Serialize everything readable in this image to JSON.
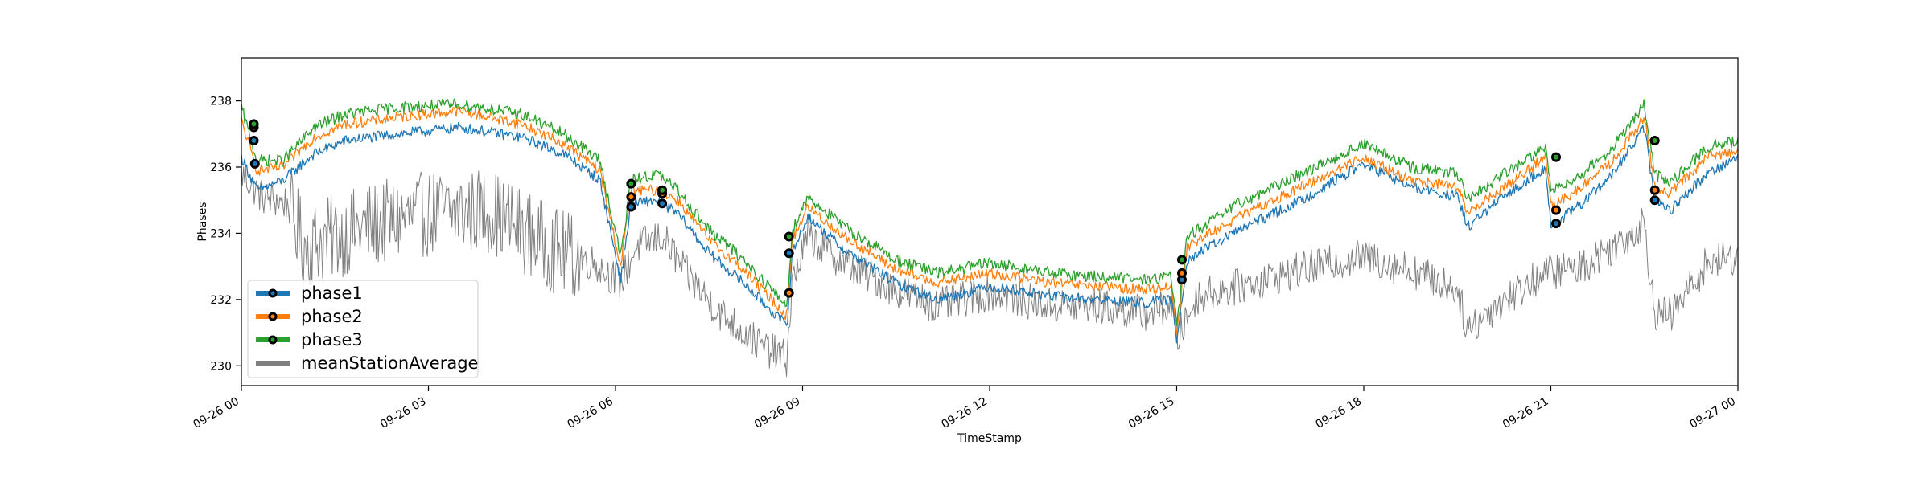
{
  "chart_data": {
    "type": "line",
    "xlabel": "TimeStamp",
    "ylabel": "Phases",
    "xlim": [
      "2019-09-26 00:00",
      "2019-09-27 00:00"
    ],
    "ylim": [
      229.4,
      239.3
    ],
    "x_ticks": [
      "09-26 00",
      "09-26 03",
      "09-26 06",
      "09-26 09",
      "09-26 12",
      "09-26 15",
      "09-26 18",
      "09-26 21",
      "09-27 00"
    ],
    "x_tick_hours": [
      0,
      3,
      6,
      9,
      12,
      15,
      18,
      21,
      24
    ],
    "y_ticks": [
      230,
      232,
      234,
      236,
      238
    ],
    "grid": false,
    "legend_position": "lower-left",
    "series": [
      {
        "name": "phase1",
        "color": "#1f77b4",
        "marker_color": "#1f77b4",
        "keypoints": [
          [
            "2019-09-26 00:00",
            236.3
          ],
          [
            "2019-09-26 00:15",
            235.3
          ],
          [
            "2019-09-26 00:40",
            235.6
          ],
          [
            "2019-09-26 01:10",
            236.4
          ],
          [
            "2019-09-26 01:40",
            236.8
          ],
          [
            "2019-09-26 02:30",
            237.0
          ],
          [
            "2019-09-26 03:30",
            237.2
          ],
          [
            "2019-09-26 04:30",
            236.9
          ],
          [
            "2019-09-26 05:10",
            236.4
          ],
          [
            "2019-09-26 05:45",
            235.6
          ],
          [
            "2019-09-26 06:05",
            232.6
          ],
          [
            "2019-09-26 06:15",
            234.9
          ],
          [
            "2019-09-26 06:40",
            235.0
          ],
          [
            "2019-09-26 07:00",
            234.6
          ],
          [
            "2019-09-26 07:30",
            233.4
          ],
          [
            "2019-09-26 08:00",
            232.6
          ],
          [
            "2019-09-26 08:45",
            231.2
          ],
          [
            "2019-09-26 08:50",
            233.4
          ],
          [
            "2019-09-26 09:05",
            234.5
          ],
          [
            "2019-09-26 09:40",
            233.5
          ],
          [
            "2019-09-26 10:30",
            232.5
          ],
          [
            "2019-09-26 11:10",
            232.0
          ],
          [
            "2019-09-26 12:00",
            232.4
          ],
          [
            "2019-09-26 13:00",
            232.1
          ],
          [
            "2019-09-26 13:40",
            232.0
          ],
          [
            "2019-09-26 14:30",
            231.9
          ],
          [
            "2019-09-26 14:55",
            232.0
          ],
          [
            "2019-09-26 15:00",
            230.8
          ],
          [
            "2019-09-26 15:10",
            233.2
          ],
          [
            "2019-09-26 16:00",
            234.1
          ],
          [
            "2019-09-26 17:00",
            235.0
          ],
          [
            "2019-09-26 18:00",
            236.1
          ],
          [
            "2019-09-26 18:45",
            235.4
          ],
          [
            "2019-09-26 19:30",
            235.1
          ],
          [
            "2019-09-26 19:40",
            234.2
          ],
          [
            "2019-09-26 20:15",
            235.1
          ],
          [
            "2019-09-26 20:55",
            236.0
          ],
          [
            "2019-09-26 21:00",
            234.2
          ],
          [
            "2019-09-26 21:30",
            234.9
          ],
          [
            "2019-09-26 22:00",
            235.8
          ],
          [
            "2019-09-26 22:30",
            237.2
          ],
          [
            "2019-09-26 22:40",
            235.0
          ],
          [
            "2019-09-26 22:55",
            234.7
          ],
          [
            "2019-09-26 23:30",
            235.8
          ],
          [
            "2019-09-27 00:00",
            236.3
          ]
        ],
        "marker_points": [
          [
            "2019-09-26 00:12",
            236.8
          ],
          [
            "2019-09-26 00:13",
            236.1
          ],
          [
            "2019-09-26 06:15",
            234.8
          ],
          [
            "2019-09-26 06:45",
            234.9
          ],
          [
            "2019-09-26 08:47",
            233.4
          ],
          [
            "2019-09-26 15:05",
            232.6
          ],
          [
            "2019-09-26 21:05",
            234.3
          ],
          [
            "2019-09-26 22:40",
            235.0
          ]
        ]
      },
      {
        "name": "phase2",
        "color": "#ff7f0e",
        "marker_color": "#ff7f0e",
        "keypoints": [
          [
            "2019-09-26 00:00",
            237.4
          ],
          [
            "2019-09-26 00:15",
            235.9
          ],
          [
            "2019-09-26 00:40",
            236.0
          ],
          [
            "2019-09-26 01:10",
            236.9
          ],
          [
            "2019-09-26 01:40",
            237.3
          ],
          [
            "2019-09-26 02:30",
            237.5
          ],
          [
            "2019-09-26 03:30",
            237.7
          ],
          [
            "2019-09-26 04:30",
            237.3
          ],
          [
            "2019-09-26 05:10",
            236.7
          ],
          [
            "2019-09-26 05:45",
            235.9
          ],
          [
            "2019-09-26 06:05",
            233.0
          ],
          [
            "2019-09-26 06:15",
            235.3
          ],
          [
            "2019-09-26 06:40",
            235.3
          ],
          [
            "2019-09-26 07:00",
            235.0
          ],
          [
            "2019-09-26 07:30",
            233.8
          ],
          [
            "2019-09-26 08:00",
            233.0
          ],
          [
            "2019-09-26 08:45",
            231.5
          ],
          [
            "2019-09-26 08:50",
            233.8
          ],
          [
            "2019-09-26 09:05",
            234.8
          ],
          [
            "2019-09-26 09:40",
            233.9
          ],
          [
            "2019-09-26 10:30",
            232.9
          ],
          [
            "2019-09-26 11:10",
            232.5
          ],
          [
            "2019-09-26 12:00",
            232.8
          ],
          [
            "2019-09-26 13:00",
            232.5
          ],
          [
            "2019-09-26 13:40",
            232.4
          ],
          [
            "2019-09-26 14:30",
            232.3
          ],
          [
            "2019-09-26 14:55",
            232.4
          ],
          [
            "2019-09-26 15:00",
            231.0
          ],
          [
            "2019-09-26 15:10",
            233.6
          ],
          [
            "2019-09-26 16:00",
            234.5
          ],
          [
            "2019-09-26 17:00",
            235.4
          ],
          [
            "2019-09-26 18:00",
            236.3
          ],
          [
            "2019-09-26 18:45",
            235.6
          ],
          [
            "2019-09-26 19:30",
            235.4
          ],
          [
            "2019-09-26 19:40",
            234.6
          ],
          [
            "2019-09-26 20:15",
            235.4
          ],
          [
            "2019-09-26 20:55",
            236.3
          ],
          [
            "2019-09-26 21:00",
            234.8
          ],
          [
            "2019-09-26 21:30",
            235.4
          ],
          [
            "2019-09-26 22:00",
            236.2
          ],
          [
            "2019-09-26 22:30",
            237.5
          ],
          [
            "2019-09-26 22:40",
            235.4
          ],
          [
            "2019-09-26 22:55",
            235.2
          ],
          [
            "2019-09-26 23:30",
            236.3
          ],
          [
            "2019-09-27 00:00",
            236.5
          ]
        ],
        "marker_points": [
          [
            "2019-09-26 00:12",
            237.2
          ],
          [
            "2019-09-26 06:15",
            235.1
          ],
          [
            "2019-09-26 06:45",
            235.2
          ],
          [
            "2019-09-26 08:47",
            232.2
          ],
          [
            "2019-09-26 15:05",
            232.8
          ],
          [
            "2019-09-26 21:05",
            234.7
          ],
          [
            "2019-09-26 22:40",
            235.3
          ]
        ]
      },
      {
        "name": "phase3",
        "color": "#2ca02c",
        "marker_color": "#2ca02c",
        "keypoints": [
          [
            "2019-09-26 00:00",
            237.8
          ],
          [
            "2019-09-26 00:15",
            236.2
          ],
          [
            "2019-09-26 00:40",
            236.2
          ],
          [
            "2019-09-26 01:10",
            237.2
          ],
          [
            "2019-09-26 01:40",
            237.6
          ],
          [
            "2019-09-26 02:30",
            237.8
          ],
          [
            "2019-09-26 03:30",
            237.9
          ],
          [
            "2019-09-26 04:30",
            237.6
          ],
          [
            "2019-09-26 05:10",
            237.0
          ],
          [
            "2019-09-26 05:45",
            236.2
          ],
          [
            "2019-09-26 06:05",
            233.3
          ],
          [
            "2019-09-26 06:15",
            235.6
          ],
          [
            "2019-09-26 06:40",
            235.8
          ],
          [
            "2019-09-26 07:00",
            235.3
          ],
          [
            "2019-09-26 07:30",
            234.1
          ],
          [
            "2019-09-26 08:00",
            233.3
          ],
          [
            "2019-09-26 08:45",
            231.8
          ],
          [
            "2019-09-26 08:50",
            234.1
          ],
          [
            "2019-09-26 09:05",
            235.1
          ],
          [
            "2019-09-26 09:40",
            234.2
          ],
          [
            "2019-09-26 10:30",
            233.2
          ],
          [
            "2019-09-26 11:10",
            232.8
          ],
          [
            "2019-09-26 12:00",
            233.1
          ],
          [
            "2019-09-26 13:00",
            232.8
          ],
          [
            "2019-09-26 13:40",
            232.7
          ],
          [
            "2019-09-26 14:30",
            232.6
          ],
          [
            "2019-09-26 14:55",
            232.7
          ],
          [
            "2019-09-26 15:00",
            231.2
          ],
          [
            "2019-09-26 15:10",
            233.9
          ],
          [
            "2019-09-26 16:00",
            234.9
          ],
          [
            "2019-09-26 17:00",
            235.8
          ],
          [
            "2019-09-26 18:00",
            236.7
          ],
          [
            "2019-09-26 18:45",
            236.0
          ],
          [
            "2019-09-26 19:30",
            235.8
          ],
          [
            "2019-09-26 19:40",
            235.0
          ],
          [
            "2019-09-26 20:15",
            235.8
          ],
          [
            "2019-09-26 20:55",
            236.6
          ],
          [
            "2019-09-26 21:00",
            235.3
          ],
          [
            "2019-09-26 21:30",
            235.8
          ],
          [
            "2019-09-26 22:00",
            236.6
          ],
          [
            "2019-09-26 22:30",
            237.9
          ],
          [
            "2019-09-26 22:40",
            235.8
          ],
          [
            "2019-09-26 22:55",
            235.5
          ],
          [
            "2019-09-26 23:30",
            236.6
          ],
          [
            "2019-09-27 00:00",
            236.8
          ]
        ],
        "marker_points": [
          [
            "2019-09-26 00:12",
            237.3
          ],
          [
            "2019-09-26 06:15",
            235.5
          ],
          [
            "2019-09-26 06:45",
            235.3
          ],
          [
            "2019-09-26 08:47",
            233.9
          ],
          [
            "2019-09-26 15:05",
            233.2
          ],
          [
            "2019-09-26 21:05",
            236.3
          ],
          [
            "2019-09-26 22:40",
            236.8
          ]
        ]
      },
      {
        "name": "meanStationAverage",
        "color": "#808080",
        "keypoints": [
          [
            "2019-09-26 00:00",
            235.8
          ],
          [
            "2019-09-26 00:20",
            235.1
          ],
          [
            "2019-09-26 00:45",
            234.9
          ],
          [
            "2019-09-26 01:00",
            233.6
          ],
          [
            "2019-09-26 02:00",
            234.2
          ],
          [
            "2019-09-26 03:00",
            234.6
          ],
          [
            "2019-09-26 04:00",
            234.7
          ],
          [
            "2019-09-26 05:00",
            233.5
          ],
          [
            "2019-09-26 05:40",
            233.1
          ],
          [
            "2019-09-26 06:05",
            232.5
          ],
          [
            "2019-09-26 06:20",
            233.6
          ],
          [
            "2019-09-26 06:45",
            233.9
          ],
          [
            "2019-09-26 07:10",
            232.7
          ],
          [
            "2019-09-26 07:40",
            231.6
          ],
          [
            "2019-09-26 08:20",
            230.6
          ],
          [
            "2019-09-26 08:45",
            230.2
          ],
          [
            "2019-09-26 08:50",
            232.5
          ],
          [
            "2019-09-26 09:05",
            233.9
          ],
          [
            "2019-09-26 09:40",
            233.1
          ],
          [
            "2019-09-26 10:30",
            232.3
          ],
          [
            "2019-09-26 11:10",
            231.8
          ],
          [
            "2019-09-26 12:00",
            232.2
          ],
          [
            "2019-09-26 13:00",
            231.8
          ],
          [
            "2019-09-26 13:40",
            231.8
          ],
          [
            "2019-09-26 14:30",
            231.6
          ],
          [
            "2019-09-26 14:55",
            231.8
          ],
          [
            "2019-09-26 15:00",
            230.8
          ],
          [
            "2019-09-26 15:20",
            232.1
          ],
          [
            "2019-09-26 16:00",
            232.4
          ],
          [
            "2019-09-26 17:00",
            232.9
          ],
          [
            "2019-09-26 18:00",
            233.3
          ],
          [
            "2019-09-26 18:45",
            232.9
          ],
          [
            "2019-09-26 19:30",
            232.3
          ],
          [
            "2019-09-26 19:40",
            231.1
          ],
          [
            "2019-09-26 20:15",
            232.0
          ],
          [
            "2019-09-26 20:55",
            232.8
          ],
          [
            "2019-09-26 21:30",
            233.0
          ],
          [
            "2019-09-26 22:00",
            233.6
          ],
          [
            "2019-09-26 22:30",
            234.3
          ],
          [
            "2019-09-26 22:40",
            231.6
          ],
          [
            "2019-09-26 22:55",
            231.5
          ],
          [
            "2019-09-26 23:30",
            233.1
          ],
          [
            "2019-09-27 00:00",
            233.3
          ]
        ]
      }
    ]
  }
}
